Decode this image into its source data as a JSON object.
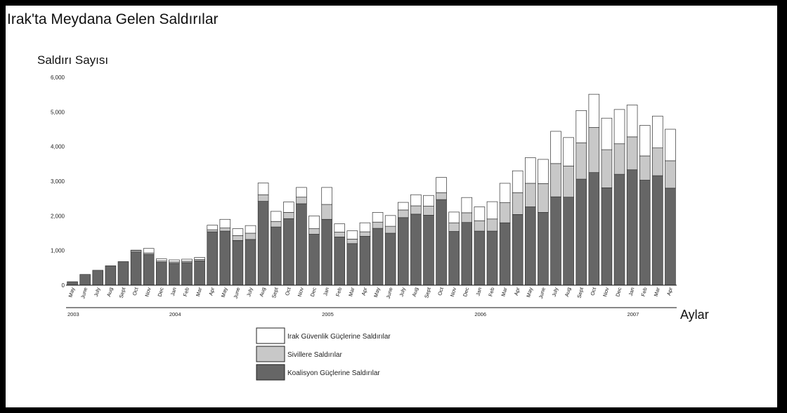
{
  "chart_data": {
    "type": "bar",
    "stacked": true,
    "title": "Irak'ta Meydana Gelen Saldırılar",
    "ylabel": "Saldırı Sayısı",
    "xlabel": "Aylar",
    "ylim": [
      0,
      6000
    ],
    "yticks": [
      {
        "value": 0,
        "label": "0"
      },
      {
        "value": 1000,
        "label": "1,000"
      },
      {
        "value": 2000,
        "label": "2,000"
      },
      {
        "value": 3000,
        "label": "3,000"
      },
      {
        "value": 4000,
        "label": "4,000"
      },
      {
        "value": 5000,
        "label": "5,000"
      },
      {
        "value": 6000,
        "label": "6,000"
      }
    ],
    "grid": false,
    "legend_position": "bottom-center",
    "categories": [
      "May",
      "June",
      "July",
      "Aug",
      "Sept",
      "Oct",
      "Nov",
      "Dec",
      "Jan",
      "Feb",
      "Mar",
      "Apr",
      "May",
      "June",
      "July",
      "Aug",
      "Sept",
      "Oct",
      "Nov",
      "Dec",
      "Jan",
      "Feb",
      "Mar",
      "Apr",
      "May",
      "June",
      "July",
      "Aug",
      "Sept",
      "Oct",
      "Nov",
      "Dec",
      "Jan",
      "Feb",
      "Mar",
      "Apr",
      "May",
      "June",
      "July",
      "Aug",
      "Sept",
      "Oct",
      "Nov",
      "Dec",
      "Jan",
      "Feb",
      "Mar",
      "Apr"
    ],
    "years": [
      {
        "label": "2003",
        "start_index": 0
      },
      {
        "label": "2004",
        "start_index": 8
      },
      {
        "label": "2005",
        "start_index": 20
      },
      {
        "label": "2006",
        "start_index": 32
      },
      {
        "label": "2007",
        "start_index": 44
      }
    ],
    "series": [
      {
        "name": "Koalisyon Güçlerine Saldırılar",
        "color": "#666666",
        "values": [
          100,
          310,
          430,
          560,
          680,
          960,
          890,
          660,
          630,
          650,
          700,
          1540,
          1560,
          1290,
          1320,
          2420,
          1680,
          1920,
          2350,
          1470,
          1900,
          1390,
          1200,
          1410,
          1640,
          1500,
          1950,
          2050,
          2020,
          2470,
          1550,
          1810,
          1560,
          1560,
          1800,
          2040,
          2260,
          2100,
          2550,
          2540,
          3060,
          3250,
          2810,
          3200,
          3330,
          3030,
          3160,
          2800
        ]
      },
      {
        "name": "Sivillere Saldırılar",
        "color": "#c8c8c8",
        "values": [
          0,
          0,
          0,
          0,
          0,
          40,
          40,
          40,
          40,
          40,
          40,
          60,
          90,
          140,
          180,
          190,
          160,
          180,
          190,
          160,
          430,
          140,
          130,
          130,
          180,
          200,
          220,
          240,
          260,
          200,
          250,
          280,
          300,
          350,
          580,
          630,
          680,
          830,
          960,
          900,
          1050,
          1300,
          1100,
          880,
          950,
          700,
          800,
          790
        ]
      },
      {
        "name": "Irak Güvenlik Güçlerine Saldırılar",
        "color": "#ffffff",
        "values": [
          0,
          0,
          0,
          0,
          0,
          10,
          130,
          60,
          60,
          60,
          60,
          130,
          250,
          200,
          220,
          340,
          290,
          300,
          280,
          370,
          490,
          240,
          240,
          260,
          280,
          310,
          220,
          320,
          310,
          440,
          310,
          440,
          400,
          500,
          560,
          630,
          740,
          700,
          930,
          820,
          930,
          960,
          910,
          990,
          920,
          880,
          920,
          910
        ]
      }
    ]
  },
  "legend": {
    "items": [
      {
        "label": "Irak Güvenlik Güçlerine Saldırılar",
        "color": "#ffffff"
      },
      {
        "label": "Sivillere Saldırılar",
        "color": "#c8c8c8"
      },
      {
        "label": "Koalisyon Güçlerine Saldırılar",
        "color": "#666666"
      }
    ]
  }
}
